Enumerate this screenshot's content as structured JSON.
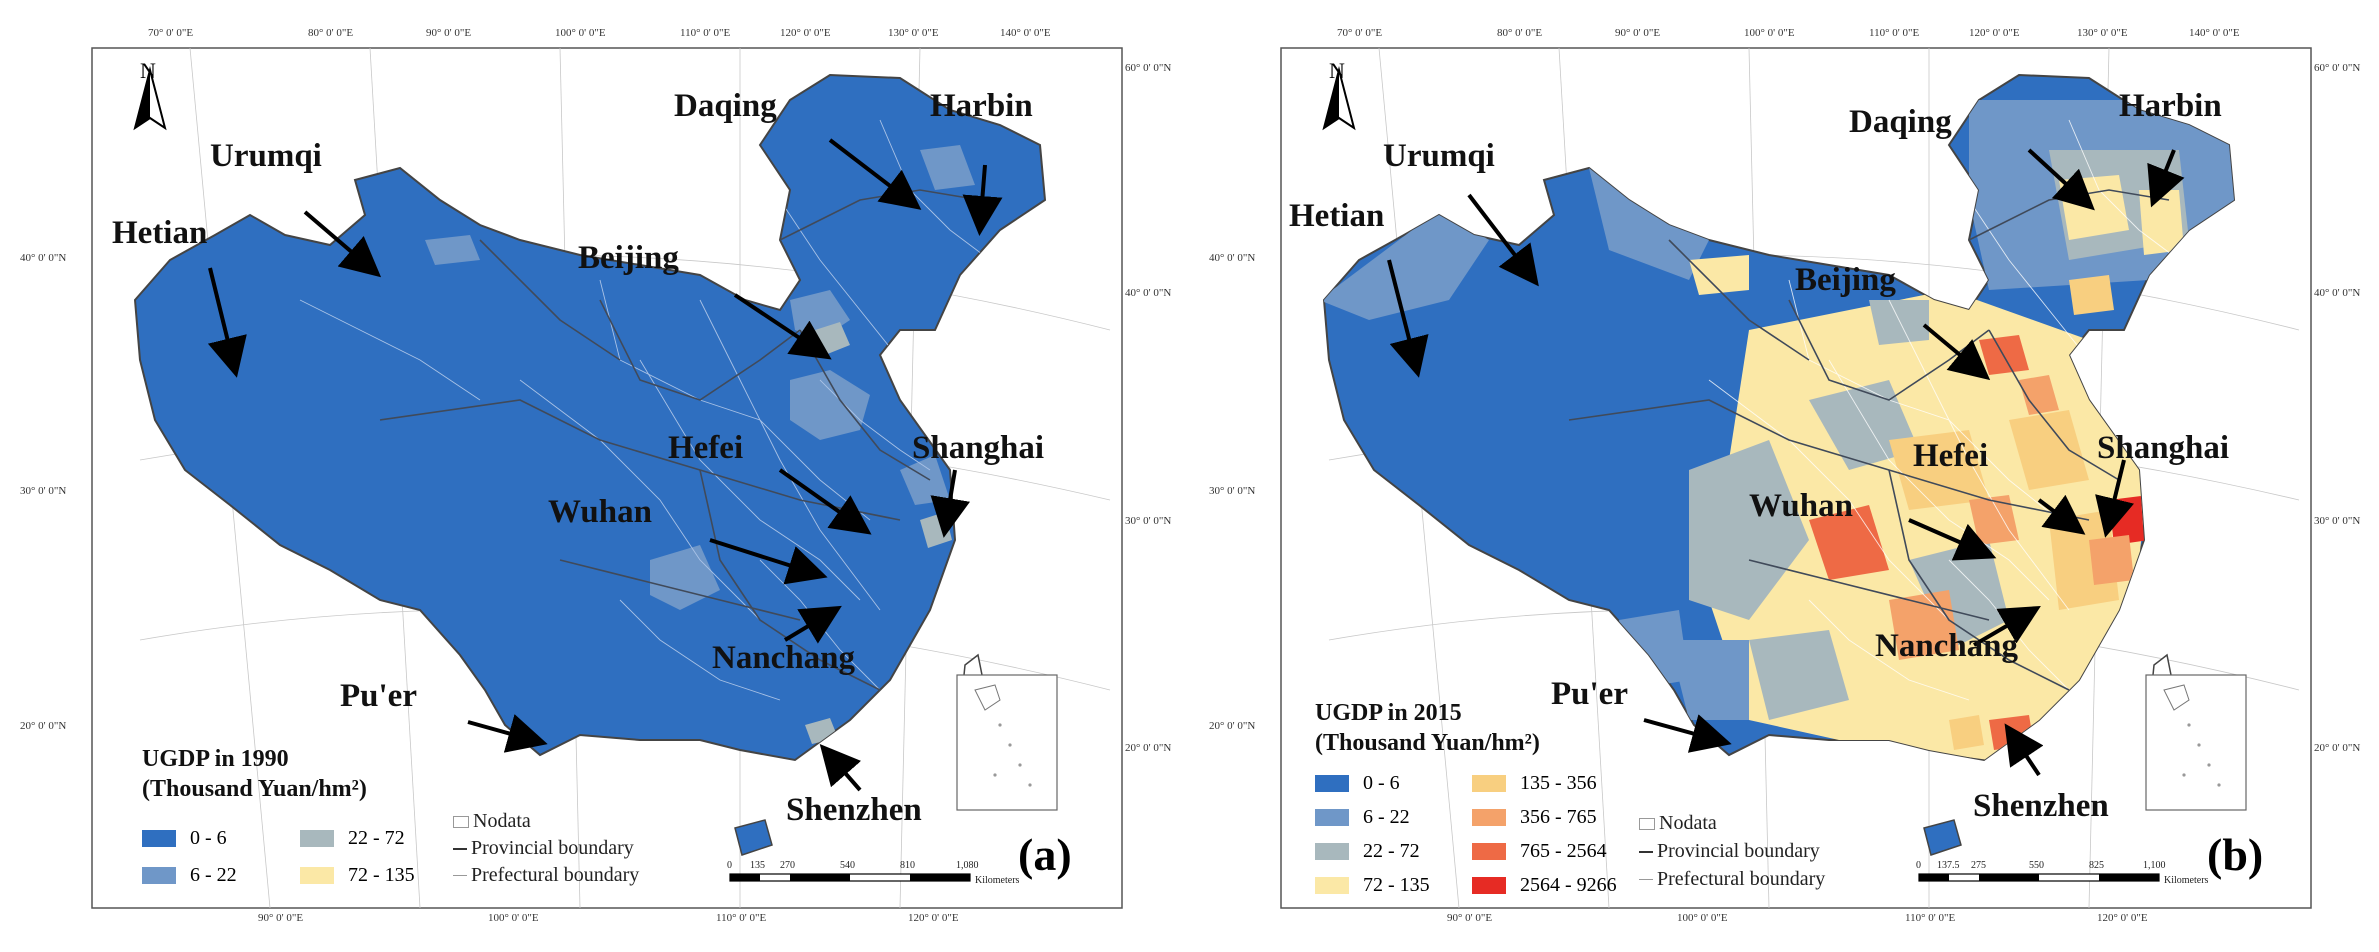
{
  "north_label": "N",
  "panels": [
    {
      "id": "a",
      "label": "(a)",
      "legend_title": "UGDP in 1990",
      "legend_unit": "(Thousand Yuan/hm²)",
      "legend": [
        {
          "range": "0 - 6",
          "color": "#2f6fc0"
        },
        {
          "range": "6 - 22",
          "color": "#6f97c8"
        },
        {
          "range": "22 - 72",
          "color": "#a8b8bd"
        },
        {
          "range": "72 - 135",
          "color": "#fbe8a6"
        }
      ],
      "boundaries": [
        "Nodata",
        "Provincial boundary",
        "Prefectural boundary"
      ],
      "scale_ticks": [
        "0",
        "135",
        "270",
        "540",
        "810",
        "1,080"
      ],
      "scale_unit": "Kilometers",
      "lon_ticks_top": [
        "70° 0' 0\"E",
        "80° 0' 0\"E",
        "90° 0' 0\"E",
        "100° 0' 0\"E",
        "110° 0' 0\"E",
        "120° 0' 0\"E",
        "130° 0' 0\"E",
        "140° 0' 0\"E"
      ],
      "lon_ticks_bottom": [
        "90° 0' 0\"E",
        "100° 0' 0\"E",
        "110° 0' 0\"E",
        "120° 0' 0\"E"
      ],
      "lat_ticks_left": [
        "40° 0' 0\"N",
        "30° 0' 0\"N",
        "20° 0' 0\"N"
      ],
      "lat_ticks_right": [
        "60° 0' 0\"N",
        "40° 0' 0\"N",
        "30° 0' 0\"N",
        "20° 0' 0\"N"
      ],
      "cities": [
        "Daqing",
        "Harbin",
        "Urumqi",
        "Hetian",
        "Beijing",
        "Hefei",
        "Shanghai",
        "Wuhan",
        "Nanchang",
        "Pu'er",
        "Shenzhen"
      ]
    },
    {
      "id": "b",
      "label": "(b)",
      "legend_title": "UGDP in 2015",
      "legend_unit": "(Thousand Yuan/hm²)",
      "legend": [
        {
          "range": "0 - 6",
          "color": "#2f6fc0"
        },
        {
          "range": "6 - 22",
          "color": "#6f97c8"
        },
        {
          "range": "22 - 72",
          "color": "#a8b8bd"
        },
        {
          "range": "72 - 135",
          "color": "#fbe8a6"
        },
        {
          "range": "135 - 356",
          "color": "#f8cf80"
        },
        {
          "range": "356 - 765",
          "color": "#f4a26a"
        },
        {
          "range": "765 - 2564",
          "color": "#ee6a45"
        },
        {
          "range": "2564 - 9266",
          "color": "#e62b24"
        }
      ],
      "boundaries": [
        "Nodata",
        "Provincial boundary",
        "Prefectural boundary"
      ],
      "scale_ticks": [
        "0",
        "137.5",
        "275",
        "550",
        "825",
        "1,100"
      ],
      "scale_unit": "Kilometers",
      "lon_ticks_top": [
        "70° 0' 0\"E",
        "80° 0' 0\"E",
        "90° 0' 0\"E",
        "100° 0' 0\"E",
        "110° 0' 0\"E",
        "120° 0' 0\"E",
        "130° 0' 0\"E",
        "140° 0' 0\"E"
      ],
      "lon_ticks_bottom": [
        "90° 0' 0\"E",
        "100° 0' 0\"E",
        "110° 0' 0\"E",
        "120° 0' 0\"E"
      ],
      "lat_ticks_left": [
        "40° 0' 0\"N",
        "30° 0' 0\"N",
        "20° 0' 0\"N"
      ],
      "lat_ticks_right": [
        "60° 0' 0\"N",
        "40° 0' 0\"N",
        "30° 0' 0\"N",
        "20° 0' 0\"N"
      ],
      "cities": [
        "Daqing",
        "Harbin",
        "Urumqi",
        "Hetian",
        "Beijing",
        "Hefei",
        "Shanghai",
        "Wuhan",
        "Nanchang",
        "Pu'er",
        "Shenzhen"
      ]
    }
  ]
}
